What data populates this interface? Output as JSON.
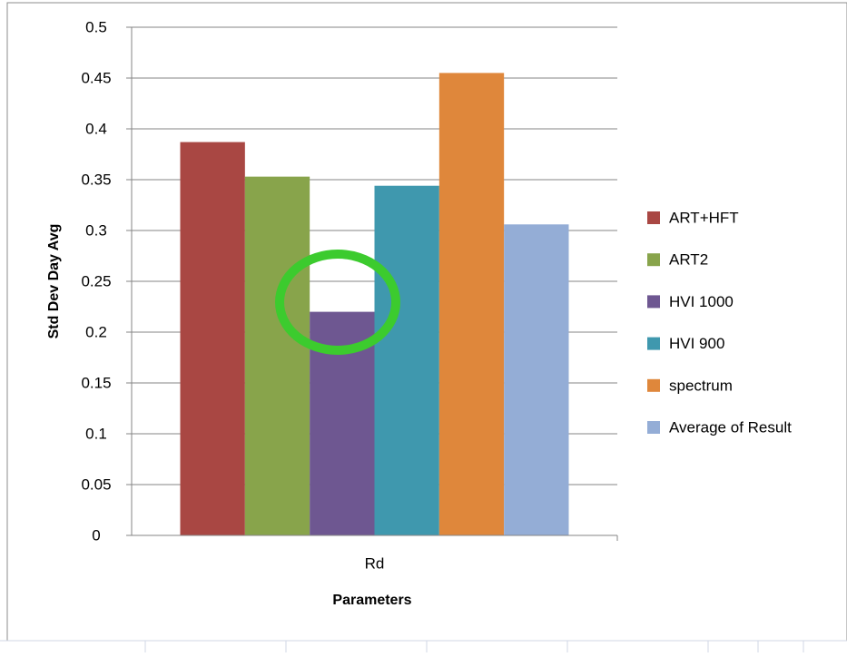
{
  "chart_data": {
    "type": "bar",
    "x_label": "Parameters",
    "y_label": "Std Dev Day Avg",
    "categories": [
      "Rd"
    ],
    "series": [
      {
        "name": "ART+HFT",
        "color": "#a94743",
        "values": [
          0.387
        ]
      },
      {
        "name": "ART2",
        "color": "#88a44b",
        "values": [
          0.353
        ]
      },
      {
        "name": "HVI 1000",
        "color": "#6e5791",
        "values": [
          0.22
        ]
      },
      {
        "name": "HVI 900",
        "color": "#3f98ae",
        "values": [
          0.344
        ]
      },
      {
        "name": "spectrum",
        "color": "#df873b",
        "values": [
          0.455
        ]
      },
      {
        "name": "Average of Result",
        "color": "#94add6",
        "values": [
          0.306
        ]
      }
    ],
    "ylim": [
      0,
      0.5
    ],
    "yticks": [
      0,
      0.05,
      0.1,
      0.15,
      0.2,
      0.25,
      0.3,
      0.35,
      0.4,
      0.45,
      0.5
    ],
    "grid": true,
    "legend": "right"
  }
}
